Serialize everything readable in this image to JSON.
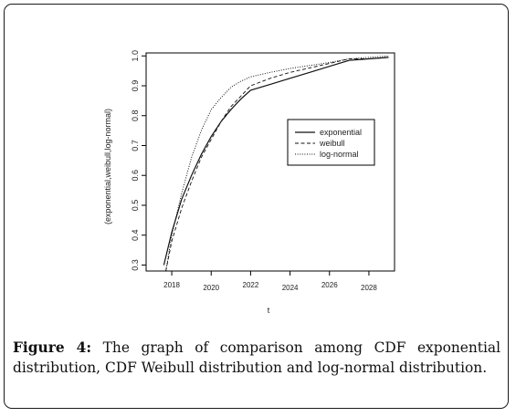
{
  "chart_data": {
    "type": "line",
    "title": "",
    "xlabel": "t",
    "ylabel": "(exponential,weibull,log-normal)",
    "xlim": [
      2016.7,
      2029.3
    ],
    "ylim": [
      0.28,
      1.01
    ],
    "x_ticks": [
      2018,
      2020,
      2022,
      2024,
      2026,
      2028
    ],
    "y_ticks": [
      0.3,
      0.4,
      0.5,
      0.6,
      0.7,
      0.8,
      0.9,
      1.0
    ],
    "y_tick_labels": [
      "0.3",
      "0.4",
      "0.5",
      "0.6",
      "0.7",
      "0.8",
      "0.9",
      "1.0"
    ],
    "legend_position": "right",
    "series": [
      {
        "name": "exponential",
        "line_style": "solid",
        "x": [
          2017.6,
          2018,
          2018.5,
          2019,
          2019.5,
          2020,
          2020.5,
          2021,
          2021.5,
          2022,
          2023,
          2024,
          2025,
          2026,
          2027,
          2028,
          2029
        ],
        "y": [
          0.3,
          0.41,
          0.52,
          0.6,
          0.67,
          0.73,
          0.78,
          0.82,
          0.855,
          0.885,
          0.905,
          0.925,
          0.945,
          0.965,
          0.985,
          0.99,
          0.995
        ]
      },
      {
        "name": "weibull",
        "line_style": "dashed",
        "x": [
          2017.7,
          2018,
          2018.5,
          2019,
          2019.5,
          2020,
          2020.5,
          2021,
          2021.5,
          2022,
          2023,
          2024,
          2025,
          2026,
          2027,
          2028,
          2029
        ],
        "y": [
          0.28,
          0.38,
          0.49,
          0.58,
          0.66,
          0.72,
          0.78,
          0.83,
          0.865,
          0.9,
          0.925,
          0.945,
          0.96,
          0.975,
          0.99,
          0.99,
          0.995
        ]
      },
      {
        "name": "log-normal",
        "line_style": "dotted",
        "x": [
          2017.7,
          2018,
          2018.5,
          2019,
          2019.5,
          2020,
          2020.5,
          2021,
          2021.5,
          2022,
          2023,
          2024,
          2025,
          2026,
          2027,
          2028,
          2029
        ],
        "y": [
          0.28,
          0.4,
          0.54,
          0.66,
          0.75,
          0.82,
          0.86,
          0.895,
          0.915,
          0.93,
          0.945,
          0.958,
          0.968,
          0.978,
          0.99,
          0.995,
          1.0
        ]
      }
    ]
  },
  "caption": {
    "label": "Figure 4:",
    "text": " The graph of comparison among CDF exponential distribution, CDF Weibull distribution and log-normal distribution."
  }
}
